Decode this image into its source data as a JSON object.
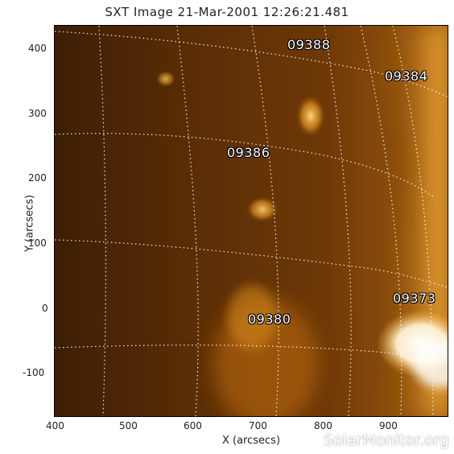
{
  "title": "SXT Image 21-Mar-2001 12:26:21.481",
  "x_axis": {
    "label": "X (arcsecs)",
    "ticks": [
      "400",
      "500",
      "600",
      "700",
      "800",
      "900"
    ]
  },
  "y_axis": {
    "label": "Y (arcsecs)",
    "ticks": [
      "400",
      "300",
      "200",
      "100",
      "0",
      "-100"
    ]
  },
  "regions": [
    {
      "label": "09388"
    },
    {
      "label": "09384"
    },
    {
      "label": "09386"
    },
    {
      "label": "09373"
    },
    {
      "label": "09380"
    }
  ],
  "watermark": "SolarMonitor.org",
  "colors": {
    "background_dark": "#3c1f06",
    "background_mid": "#7a3f08",
    "bright": "#ffb640",
    "hot": "#ffffff",
    "grid": "#ffffff"
  }
}
